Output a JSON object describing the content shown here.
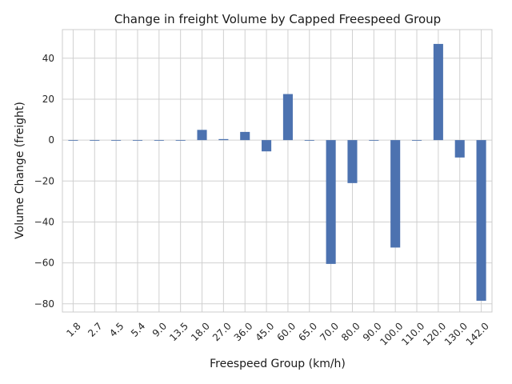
{
  "chart_data": {
    "type": "bar",
    "title": "Change in freight Volume by Capped Freespeed Group",
    "xlabel": "Freespeed Group (km/h)",
    "ylabel": "Volume Change (freight)",
    "categories": [
      "1.8",
      "2.7",
      "4.5",
      "5.4",
      "9.0",
      "13.5",
      "18.0",
      "27.0",
      "36.0",
      "45.0",
      "60.0",
      "65.0",
      "70.0",
      "80.0",
      "90.0",
      "100.0",
      "110.0",
      "120.0",
      "130.0",
      "142.0"
    ],
    "values": [
      0,
      0,
      0,
      0,
      0,
      0,
      5,
      0.5,
      4,
      -5.5,
      22.5,
      0,
      -60.5,
      -21,
      0,
      -52.5,
      0,
      47,
      -8.5,
      -78.5
    ],
    "ylim": [
      -84,
      54
    ],
    "yticks": [
      -80,
      -60,
      -40,
      -20,
      0,
      20,
      40
    ],
    "ytick_labels": [
      "−80",
      "−60",
      "−40",
      "−20",
      "0",
      "20",
      "40"
    ],
    "grid": true,
    "bar_color": "#4c72b0",
    "tick_rotation": -45
  }
}
